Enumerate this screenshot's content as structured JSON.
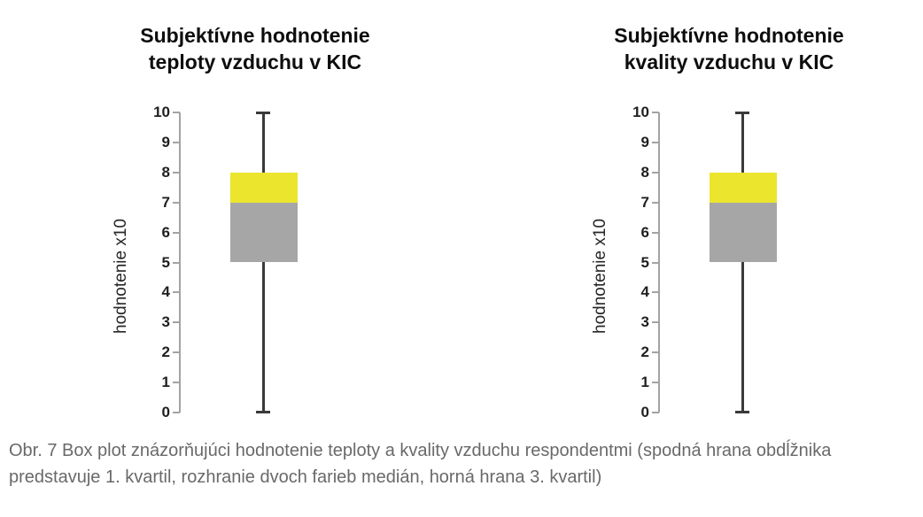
{
  "caption": "Obr. 7 Box plot znázorňujúci hodnotenie teploty a kvality vzduchu respondentmi (spodná hrana obdĺžnika predstavuje 1. kvartil, rozhranie dvoch farieb medián, horná hrana 3. kvartil)",
  "colors": {
    "box_upper_yellow": "#ebe52e",
    "box_lower_gray": "#a6a6a6",
    "whisker": "#3a3a3a",
    "axis": "#a3a3a3",
    "title_text": "#0d0d0d",
    "caption_text": "#696969"
  },
  "chart_data": [
    {
      "type": "boxplot",
      "title_lines": [
        "Subjektívne hodnotenie",
        "teploty vzduchu v KIC"
      ],
      "ylabel": "hodnotenie x10",
      "ylim": [
        0,
        10
      ],
      "yticks": [
        0,
        1,
        2,
        3,
        4,
        5,
        6,
        7,
        8,
        9,
        10
      ],
      "grid": false,
      "legend": false,
      "series": [
        {
          "name": "hodnotenie teploty vzduchu",
          "min": 0,
          "q1": 5,
          "median": 7,
          "q3": 8,
          "max": 10
        }
      ],
      "segment_colors": {
        "q1_to_median": "#a6a6a6",
        "median_to_q3": "#ebe52e"
      }
    },
    {
      "type": "boxplot",
      "title_lines": [
        "Subjektívne hodnotenie",
        "kvality vzduchu v KIC"
      ],
      "ylabel": "hodnotenie x10",
      "ylim": [
        0,
        10
      ],
      "yticks": [
        0,
        1,
        2,
        3,
        4,
        5,
        6,
        7,
        8,
        9,
        10
      ],
      "grid": false,
      "legend": false,
      "series": [
        {
          "name": "hodnotenie kvality vzduchu",
          "min": 0,
          "q1": 5,
          "median": 7,
          "q3": 8,
          "max": 10
        }
      ],
      "segment_colors": {
        "q1_to_median": "#a6a6a6",
        "median_to_q3": "#ebe52e"
      }
    }
  ]
}
